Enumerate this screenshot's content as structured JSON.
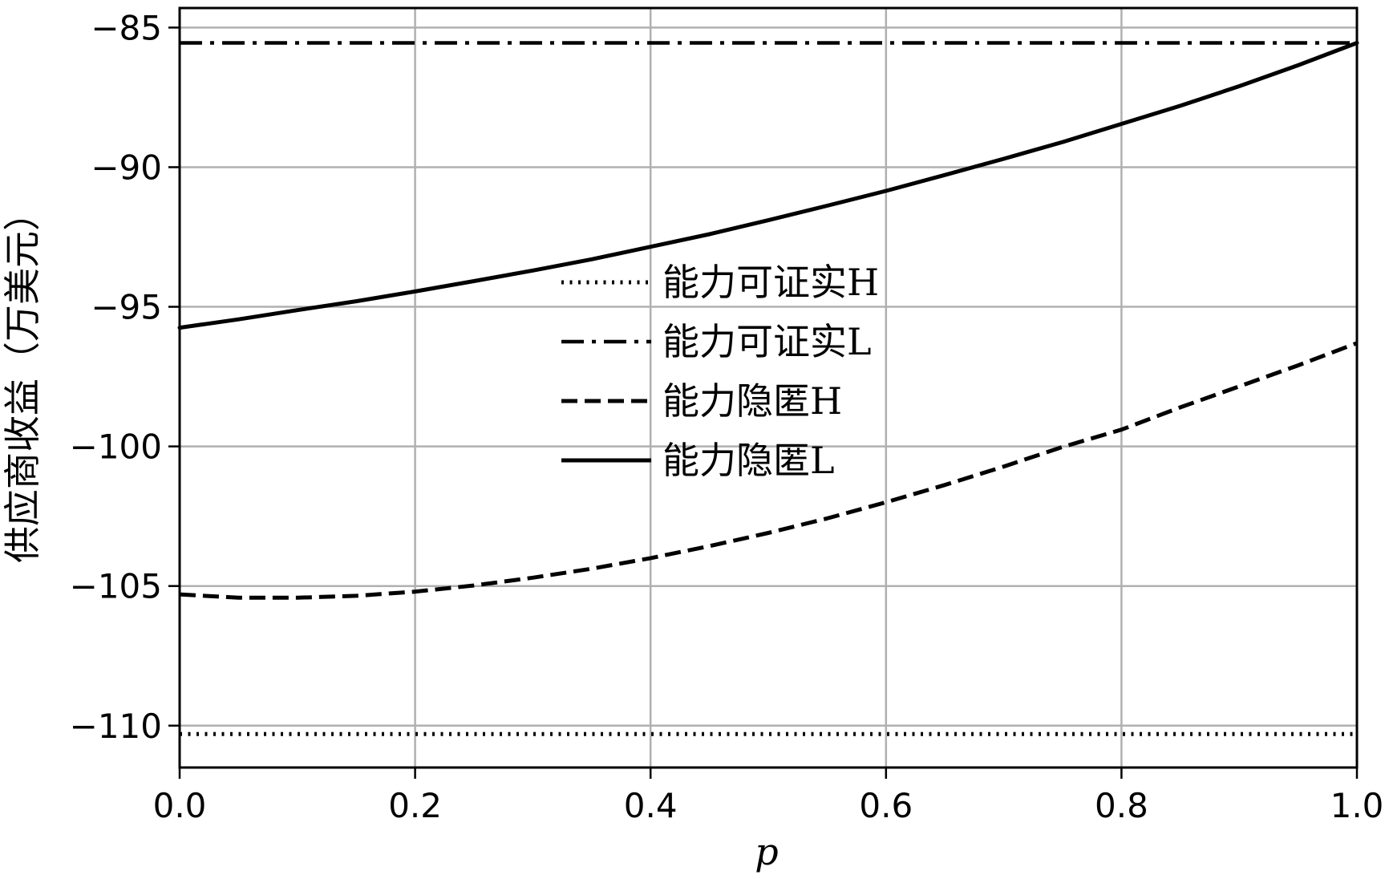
{
  "chart_data": {
    "type": "line",
    "xlabel": "p",
    "ylabel": "供应商收益（万美元）",
    "xlim": [
      0.0,
      1.0
    ],
    "ylim": [
      -111.5,
      -84.3
    ],
    "grid": true,
    "xticks": [
      0.0,
      0.2,
      0.4,
      0.6,
      0.8,
      1.0
    ],
    "xtick_labels": [
      "0.0",
      "0.2",
      "0.4",
      "0.6",
      "0.8",
      "1.0"
    ],
    "yticks": [
      -85,
      -90,
      -95,
      -100,
      -105,
      -110
    ],
    "ytick_labels": [
      "−85",
      "−90",
      "−95",
      "−100",
      "−105",
      "−110"
    ],
    "legend_position": "center",
    "series": [
      {
        "name": "能力可证实H",
        "style": "dotted",
        "x": [
          0.0,
          1.0
        ],
        "y": [
          -110.3,
          -110.3
        ]
      },
      {
        "name": "能力可证实L",
        "style": "dashdot",
        "x": [
          0.0,
          1.0
        ],
        "y": [
          -85.55,
          -85.55
        ]
      },
      {
        "name": "能力隐匿H",
        "style": "dashed",
        "x": [
          0.0,
          0.05,
          0.1,
          0.15,
          0.2,
          0.25,
          0.3,
          0.35,
          0.4,
          0.45,
          0.5,
          0.55,
          0.6,
          0.65,
          0.7,
          0.75,
          0.8,
          0.85,
          0.9,
          0.95,
          1.0
        ],
        "y": [
          -105.3,
          -105.42,
          -105.42,
          -105.35,
          -105.2,
          -104.98,
          -104.7,
          -104.38,
          -104.0,
          -103.57,
          -103.1,
          -102.58,
          -102.0,
          -101.38,
          -100.72,
          -100.02,
          -99.4,
          -98.6,
          -97.85,
          -97.1,
          -96.3
        ]
      },
      {
        "name": "能力隐匿L",
        "style": "solid",
        "x": [
          0.0,
          0.05,
          0.1,
          0.15,
          0.2,
          0.25,
          0.3,
          0.35,
          0.4,
          0.45,
          0.5,
          0.55,
          0.6,
          0.65,
          0.7,
          0.75,
          0.8,
          0.85,
          0.9,
          0.95,
          1.0
        ],
        "y": [
          -95.75,
          -95.45,
          -95.12,
          -94.8,
          -94.45,
          -94.08,
          -93.7,
          -93.3,
          -92.85,
          -92.4,
          -91.9,
          -91.38,
          -90.85,
          -90.28,
          -89.7,
          -89.1,
          -88.45,
          -87.8,
          -87.1,
          -86.35,
          -85.55
        ]
      }
    ]
  }
}
